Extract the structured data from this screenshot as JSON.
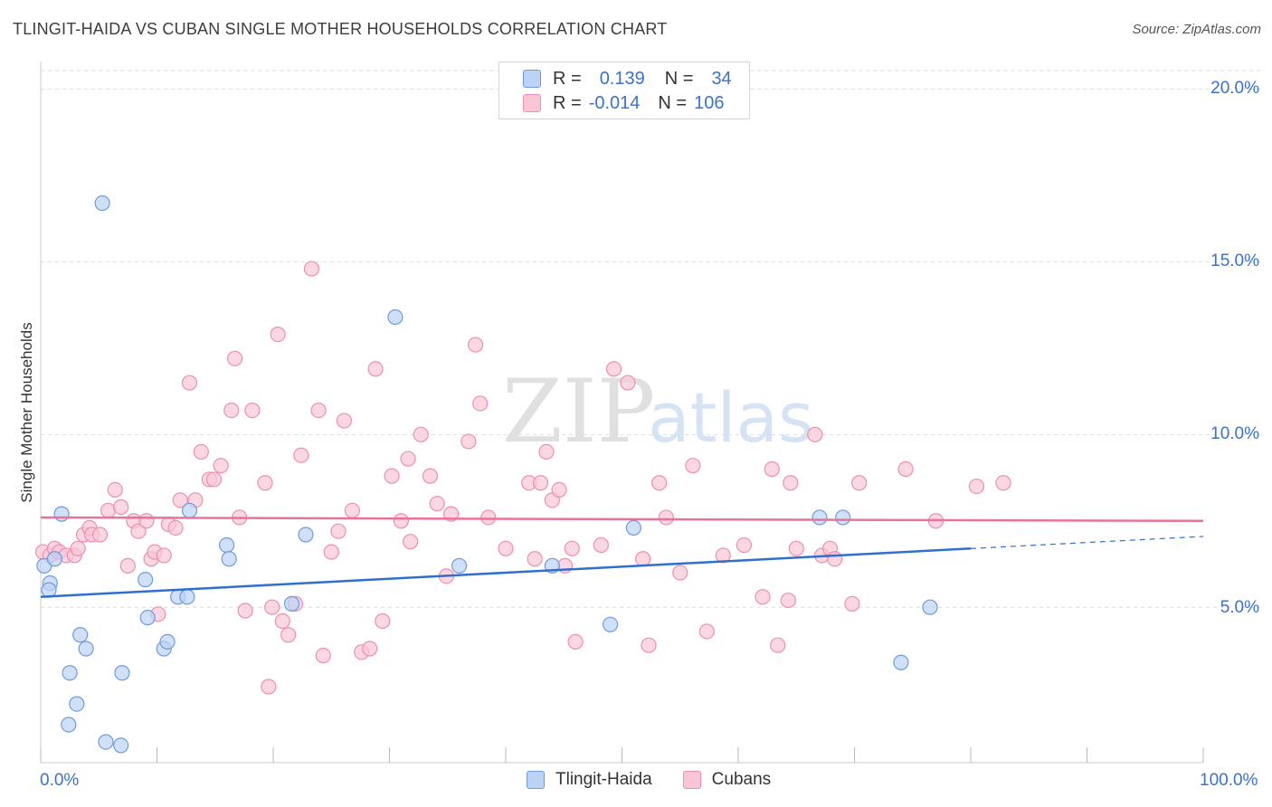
{
  "title": "TLINGIT-HAIDA VS CUBAN SINGLE MOTHER HOUSEHOLDS CORRELATION CHART",
  "source": "Source: ZipAtlas.com",
  "watermark": {
    "zip": "ZIP",
    "atlas": "atlas"
  },
  "legend": {
    "rows": [
      {
        "r_label": "R =",
        "r_value": "0.139",
        "n_label": "N =",
        "n_value": "34"
      },
      {
        "r_label": "R =",
        "r_value": "-0.014",
        "n_label": "N =",
        "n_value": "106"
      }
    ]
  },
  "colors": {
    "blue_fill": "#bcd3f5",
    "blue_stroke": "#6e9be0",
    "blue_line": "#2f6fcf",
    "pink_fill": "#fac6d6",
    "pink_stroke": "#ee8fb0",
    "pink_line": "#e8739a",
    "accent_text": "#3a72cc",
    "grid": "#dddddd"
  },
  "chart_data": {
    "type": "scatter",
    "title": "TLINGIT-HAIDA VS CUBAN SINGLE MOTHER HOUSEHOLDS CORRELATION CHART",
    "xlabel": "",
    "ylabel": "Single Mother Households",
    "x_tick_labels": [
      "0.0%",
      "100.0%"
    ],
    "y_tick_labels": [
      "5.0%",
      "10.0%",
      "15.0%",
      "20.0%"
    ],
    "y_ticks": [
      5,
      10,
      15,
      20
    ],
    "xlim": [
      0,
      100
    ],
    "ylim": [
      0.5,
      20.8
    ],
    "grid": true,
    "legend_position": "bottom-center",
    "series": [
      {
        "name": "Tlingit-Haida",
        "color": "blue",
        "trend": {
          "x0": 0,
          "y0": 5.3,
          "x1": 80,
          "y1": 6.7,
          "dashed_to_x": 100,
          "dashed_to_y": 7.05
        },
        "points": [
          [
            5.3,
            16.7
          ],
          [
            0.3,
            6.2
          ],
          [
            0.8,
            5.7
          ],
          [
            1.2,
            6.4
          ],
          [
            1.8,
            7.7
          ],
          [
            0.7,
            5.5
          ],
          [
            2.5,
            3.1
          ],
          [
            3.4,
            4.2
          ],
          [
            3.9,
            3.8
          ],
          [
            3.1,
            2.2
          ],
          [
            2.4,
            1.6
          ],
          [
            5.6,
            1.1
          ],
          [
            6.9,
            1.0
          ],
          [
            7.0,
            3.1
          ],
          [
            9.0,
            5.8
          ],
          [
            9.2,
            4.7
          ],
          [
            10.6,
            3.8
          ],
          [
            10.9,
            4.0
          ],
          [
            11.8,
            5.3
          ],
          [
            12.6,
            5.3
          ],
          [
            12.8,
            7.8
          ],
          [
            16.0,
            6.8
          ],
          [
            16.2,
            6.4
          ],
          [
            21.6,
            5.1
          ],
          [
            22.8,
            7.1
          ],
          [
            30.5,
            13.4
          ],
          [
            36.0,
            6.2
          ],
          [
            44.0,
            6.2
          ],
          [
            49.0,
            4.5
          ],
          [
            51.0,
            7.3
          ],
          [
            67.0,
            7.6
          ],
          [
            69.0,
            7.6
          ],
          [
            74.0,
            3.4
          ],
          [
            76.5,
            5.0
          ]
        ]
      },
      {
        "name": "Cubans",
        "color": "pink",
        "trend": {
          "x0": 0,
          "y0": 7.6,
          "x1": 100,
          "y1": 7.5
        },
        "points": [
          [
            0.2,
            6.6
          ],
          [
            0.8,
            6.5
          ],
          [
            1.2,
            6.7
          ],
          [
            1.6,
            6.6
          ],
          [
            2.2,
            6.5
          ],
          [
            2.9,
            6.5
          ],
          [
            3.2,
            6.7
          ],
          [
            3.7,
            7.1
          ],
          [
            4.2,
            7.3
          ],
          [
            4.4,
            7.1
          ],
          [
            5.1,
            7.1
          ],
          [
            5.8,
            7.8
          ],
          [
            6.4,
            8.4
          ],
          [
            6.9,
            7.9
          ],
          [
            7.5,
            6.2
          ],
          [
            8.0,
            7.5
          ],
          [
            8.4,
            7.2
          ],
          [
            9.1,
            7.5
          ],
          [
            9.5,
            6.4
          ],
          [
            9.8,
            6.6
          ],
          [
            10.1,
            4.8
          ],
          [
            10.6,
            6.5
          ],
          [
            11.0,
            7.4
          ],
          [
            11.6,
            7.3
          ],
          [
            12.0,
            8.1
          ],
          [
            12.8,
            11.5
          ],
          [
            13.3,
            8.1
          ],
          [
            13.8,
            9.5
          ],
          [
            14.5,
            8.7
          ],
          [
            14.9,
            8.7
          ],
          [
            15.5,
            9.1
          ],
          [
            16.4,
            10.7
          ],
          [
            16.7,
            12.2
          ],
          [
            17.1,
            7.6
          ],
          [
            17.6,
            4.9
          ],
          [
            18.2,
            10.7
          ],
          [
            19.3,
            8.6
          ],
          [
            19.6,
            2.7
          ],
          [
            19.9,
            5.0
          ],
          [
            20.4,
            12.9
          ],
          [
            20.8,
            4.6
          ],
          [
            21.3,
            4.2
          ],
          [
            21.9,
            5.1
          ],
          [
            22.4,
            9.4
          ],
          [
            23.3,
            14.8
          ],
          [
            23.9,
            10.7
          ],
          [
            24.3,
            3.6
          ],
          [
            25.0,
            6.6
          ],
          [
            25.6,
            7.2
          ],
          [
            26.1,
            10.4
          ],
          [
            26.8,
            7.8
          ],
          [
            27.6,
            3.7
          ],
          [
            28.3,
            3.8
          ],
          [
            28.8,
            11.9
          ],
          [
            29.4,
            4.6
          ],
          [
            30.2,
            8.8
          ],
          [
            31.0,
            7.5
          ],
          [
            31.6,
            9.3
          ],
          [
            31.8,
            6.9
          ],
          [
            32.7,
            10.0
          ],
          [
            33.5,
            8.8
          ],
          [
            34.1,
            8.0
          ],
          [
            34.9,
            5.9
          ],
          [
            35.3,
            7.7
          ],
          [
            36.8,
            9.8
          ],
          [
            37.4,
            12.6
          ],
          [
            37.8,
            10.9
          ],
          [
            38.5,
            7.6
          ],
          [
            40.0,
            6.7
          ],
          [
            42.0,
            8.6
          ],
          [
            42.5,
            6.4
          ],
          [
            43.0,
            8.6
          ],
          [
            43.5,
            9.5
          ],
          [
            44.0,
            8.1
          ],
          [
            44.6,
            8.4
          ],
          [
            45.1,
            6.2
          ],
          [
            45.7,
            6.7
          ],
          [
            46.0,
            4.0
          ],
          [
            48.2,
            6.8
          ],
          [
            49.3,
            11.9
          ],
          [
            50.5,
            11.5
          ],
          [
            51.8,
            6.4
          ],
          [
            52.3,
            3.9
          ],
          [
            53.2,
            8.6
          ],
          [
            53.8,
            7.6
          ],
          [
            55.0,
            6.0
          ],
          [
            56.1,
            9.1
          ],
          [
            57.3,
            4.3
          ],
          [
            58.7,
            6.5
          ],
          [
            60.5,
            6.8
          ],
          [
            62.1,
            5.3
          ],
          [
            62.9,
            9.0
          ],
          [
            63.4,
            3.9
          ],
          [
            64.5,
            8.6
          ],
          [
            65.0,
            6.7
          ],
          [
            66.6,
            10.0
          ],
          [
            67.2,
            6.5
          ],
          [
            67.9,
            6.7
          ],
          [
            68.3,
            6.4
          ],
          [
            69.8,
            5.1
          ],
          [
            70.4,
            8.6
          ],
          [
            74.4,
            9.0
          ],
          [
            77.0,
            7.5
          ],
          [
            80.5,
            8.5
          ],
          [
            82.8,
            8.6
          ],
          [
            64.3,
            5.2
          ]
        ]
      }
    ]
  }
}
